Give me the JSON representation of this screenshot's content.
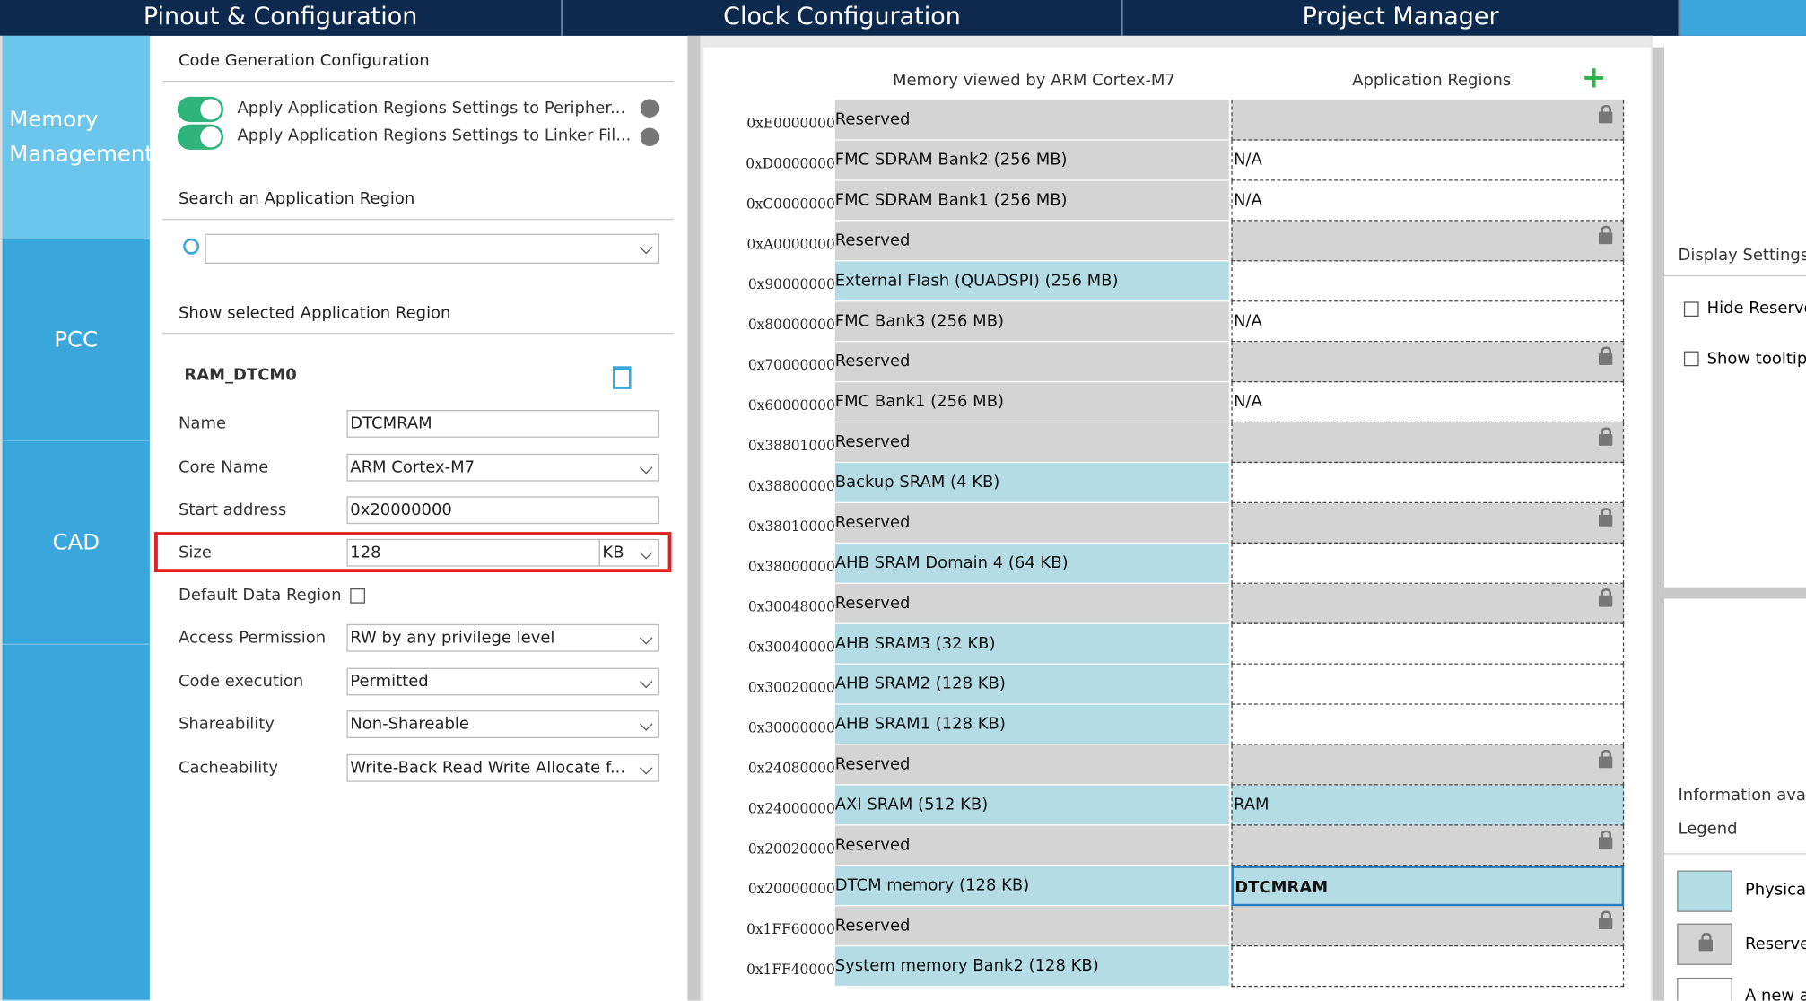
{
  "tabs": [
    "Pinout & Configuration",
    "Clock Configuration",
    "Project Manager"
  ],
  "sidebar": [
    "Memory Management",
    "PCC",
    "CAD"
  ],
  "code_generation": {
    "title": "Code Generation Configuration",
    "toggles": [
      "Apply Application Regions Settings to Peripher...",
      "Apply Application Regions Settings to Linker Fil..."
    ]
  },
  "search": {
    "title": "Search an Application Region"
  },
  "selected": {
    "title": "Show selected Application Region",
    "region": "RAM_DTCM0",
    "fields": [
      {
        "label": "Name",
        "value": "DTCMRAM"
      },
      {
        "label": "Core Name",
        "value": "ARM Cortex-M7"
      },
      {
        "label": "Start address",
        "value": "0x20000000"
      },
      {
        "label": "Size",
        "value": "128",
        "unit": "KB"
      },
      {
        "label": "Default Data Region"
      },
      {
        "label": "Access Permission",
        "value": "RW by any privilege level"
      },
      {
        "label": "Code execution",
        "value": "Permitted"
      },
      {
        "label": "Shareability",
        "value": "Non-Shareable"
      },
      {
        "label": "Cacheability",
        "value": "Write-Back Read Write Allocate f..."
      }
    ]
  },
  "memory": {
    "header": "Memory viewed by ARM Cortex-M7",
    "regions_header": "Application Regions",
    "rows": [
      {
        "address": "0xE0000000",
        "name": "Reserved",
        "color": "#d4d4d4"
      },
      {
        "address": "0xD0000000",
        "name": "FMC SDRAM Bank2 (256 MB)",
        "region": "N/A",
        "color": "#d4d4d4"
      },
      {
        "address": "0xC0000000",
        "name": "FMC SDRAM Bank1 (256 MB)",
        "region": "N/A",
        "color": "#d4d4d4"
      },
      {
        "address": "0xA0000000",
        "name": "Reserved",
        "color": "#d4d4d4"
      },
      {
        "address": "0x90000000",
        "name": "External Flash (QUADSPI) (256 MB)",
        "color": "#b4dce4"
      },
      {
        "address": "0x80000000",
        "name": "FMC Bank3 (256 MB)",
        "region": "N/A",
        "color": "#d4d4d4"
      },
      {
        "address": "0x70000000",
        "name": "Reserved",
        "color": "#d4d4d4"
      },
      {
        "address": "0x60000000",
        "name": "FMC Bank1 (256 MB)",
        "region": "N/A",
        "color": "#d4d4d4"
      },
      {
        "address": "0x38801000",
        "name": "Reserved",
        "color": "#d4d4d4"
      },
      {
        "address": "0x38800000",
        "name": "Backup SRAM (4 KB)",
        "color": "#b4dce4"
      },
      {
        "address": "0x38010000",
        "name": "Reserved",
        "color": "#d4d4d4"
      },
      {
        "address": "0x38000000",
        "name": "AHB SRAM Domain 4 (64 KB)",
        "color": "#b4dce4"
      },
      {
        "address": "0x30048000",
        "name": "Reserved",
        "color": "#d4d4d4"
      },
      {
        "address": "0x30040000",
        "name": "AHB SRAM3 (32 KB)",
        "color": "#b4dce4"
      },
      {
        "address": "0x30020000",
        "name": "AHB SRAM2 (128 KB)",
        "color": "#b4dce4"
      },
      {
        "address": "0x30000000",
        "name": "AHB SRAM1 (128 KB)",
        "color": "#b4dce4"
      },
      {
        "address": "0x24080000",
        "name": "Reserved",
        "color": "#d4d4d4"
      },
      {
        "address": "0x24000000",
        "name": "AXI SRAM (512 KB)",
        "region": "RAM",
        "color": "#b4dce4"
      },
      {
        "address": "0x20020000",
        "name": "Reserved",
        "color": "#d4d4d4"
      },
      {
        "address": "0x20000000",
        "name": "DTCM memory (128 KB)",
        "region": "DTCMRAM",
        "color": "#b4dce4"
      },
      {
        "address": "0x1FF60000",
        "name": "Reserved",
        "color": "#d4d4d4"
      },
      {
        "address": "0x1FF40000",
        "name": "System memory Bank2 (128 KB)",
        "color": "#b4dce4"
      }
    ]
  },
  "display_settings": {
    "title": "Display Settings",
    "options": [
      "Hide Reserve",
      "Show tooltip"
    ]
  },
  "info": {
    "text": "Information avail",
    "legend": "Legend",
    "items": [
      "Physica",
      "Reserve",
      "A new a"
    ]
  }
}
